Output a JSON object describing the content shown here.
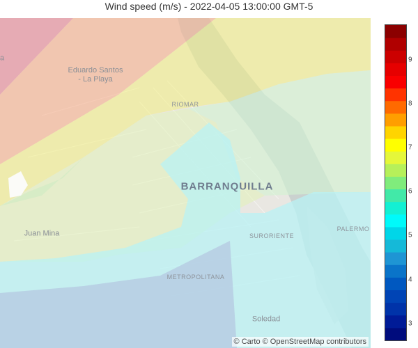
{
  "title": "Wind speed (m/s) - 2022-04-05 13:00:00 GMT-5",
  "map": {
    "places": [
      {
        "id": "eduardo-santos",
        "label": "Eduardo Santos\n- La Playa",
        "kind": "town"
      },
      {
        "id": "riomar",
        "label": "RIOMAR",
        "kind": "hood"
      },
      {
        "id": "barranquilla",
        "label": "BARRANQUILLA",
        "kind": "city"
      },
      {
        "id": "juan-mina",
        "label": "Juan Mina",
        "kind": "town"
      },
      {
        "id": "suroriente",
        "label": "SURORIENTE",
        "kind": "hood"
      },
      {
        "id": "palermo",
        "label": "PALERMO",
        "kind": "hood"
      },
      {
        "id": "metropolitana",
        "label": "METROPOLITANA",
        "kind": "hood"
      },
      {
        "id": "soledad",
        "label": "Soledad",
        "kind": "town"
      },
      {
        "id": "la-edge",
        "label": "a",
        "kind": "town"
      }
    ],
    "contour_bands": [
      {
        "level": 9.0,
        "color": "#d32f2f"
      },
      {
        "level": 7.5,
        "color": "#f8a45a"
      },
      {
        "level": 6.5,
        "color": "#f2ee7a"
      },
      {
        "level": 6.0,
        "color": "#c8f0a0"
      },
      {
        "level": 5.5,
        "color": "#b8f2e0"
      },
      {
        "level": 5.0,
        "color": "#6ff2f2"
      },
      {
        "level": 4.5,
        "color": "#8ad8ec"
      },
      {
        "level": 4.0,
        "color": "#9ab0d8"
      }
    ],
    "attribution": "© Carto © OpenStreetMap contributors"
  },
  "colorbar": {
    "range": [
      2.6,
      9.8
    ],
    "ticks": [
      "3",
      "4",
      "5",
      "6",
      "7",
      "8",
      "9"
    ],
    "colors": [
      "#000c7d",
      "#001b97",
      "#0033a9",
      "#0044b5",
      "#0058c0",
      "#0a74c9",
      "#1e95d4",
      "#15b9d8",
      "#00d6e8",
      "#00fafa",
      "#13f0d3",
      "#42e9a8",
      "#80ec7c",
      "#b6f05a",
      "#e5f73a",
      "#ffff00",
      "#ffd400",
      "#ff9e00",
      "#ff6a00",
      "#ff3300",
      "#f90000",
      "#e60000",
      "#cc0000",
      "#b00000",
      "#8b0000"
    ]
  }
}
